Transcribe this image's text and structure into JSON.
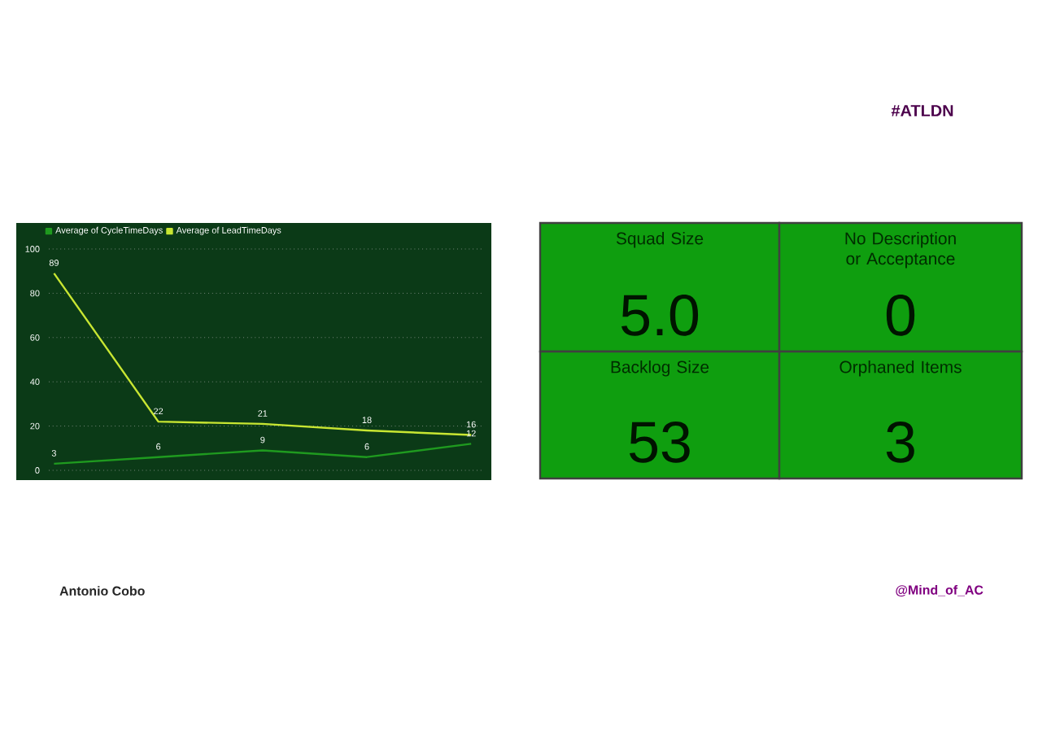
{
  "chart_data": [
    {
      "type": "line",
      "categories": [
        null,
        null,
        null,
        null,
        null
      ],
      "series": [
        {
          "name": "Average of CycleTimeDays",
          "color": "#1f9a1f",
          "values": [
            3,
            6,
            9,
            6,
            12
          ]
        },
        {
          "name": "Average of LeadTimeDays",
          "color": "#c8e632",
          "values": [
            89,
            22,
            21,
            18,
            16
          ]
        }
      ],
      "ylim": [
        0,
        100
      ],
      "yticks": [
        0,
        20,
        40,
        60,
        80,
        100
      ],
      "grid": "y",
      "legend": "top left",
      "marker": "none",
      "data_labels": true,
      "tick_labels": "y",
      "annotations": [
        "#ATLDN",
        "Antonio Cobo",
        "@Mind_of_AC"
      ]
    },
    {
      "type": "other",
      "categories": [
        "Squad Size",
        "No Description or Acceptance",
        "Backlog Size",
        "Orphaned Items"
      ],
      "value_labels": [
        "5.0",
        "0",
        "53",
        "3"
      ],
      "colors": [
        "#0f9e0f",
        "#0f9e0f",
        "#0f9e0f",
        "#0f9e0f"
      ]
    }
  ]
}
